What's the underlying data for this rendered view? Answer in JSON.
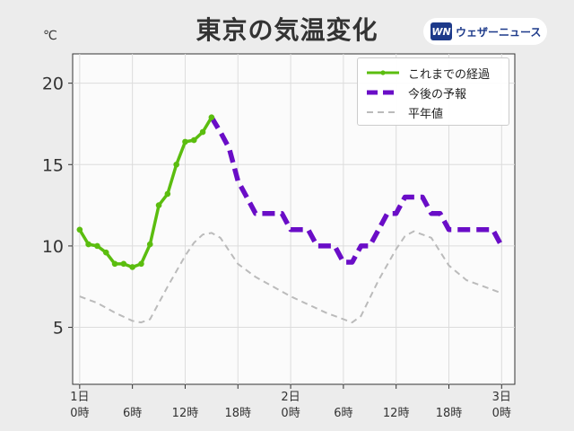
{
  "page": {
    "title": "東京の気温変化",
    "brand": "ウェザーニュース",
    "brand_mark": "WN"
  },
  "chart_data": {
    "type": "line",
    "unit": "℃",
    "ylim": [
      1.5,
      21.8
    ],
    "xlim": [
      -0.8,
      49.5
    ],
    "yticks": [
      5,
      10,
      15,
      20
    ],
    "xticks": [
      {
        "x": 0,
        "line1": "1日",
        "line2": "0時"
      },
      {
        "x": 6,
        "line1": "",
        "line2": "6時"
      },
      {
        "x": 12,
        "line1": "",
        "line2": "12時"
      },
      {
        "x": 18,
        "line1": "",
        "line2": "18時"
      },
      {
        "x": 24,
        "line1": "2日",
        "line2": "0時"
      },
      {
        "x": 30,
        "line1": "",
        "line2": "6時"
      },
      {
        "x": 36,
        "line1": "",
        "line2": "12時"
      },
      {
        "x": 42,
        "line1": "",
        "line2": "18時"
      },
      {
        "x": 48,
        "line1": "3日",
        "line2": "0時"
      }
    ],
    "grid": true,
    "legend_position": "top-right",
    "series": [
      {
        "name": "これまでの経過",
        "color": "#5bbd0f",
        "style": "solid-markers",
        "x": [
          0,
          1,
          2,
          3,
          4,
          5,
          6,
          7,
          8,
          9,
          10,
          11,
          12,
          13,
          14,
          15
        ],
        "y": [
          11.0,
          10.1,
          10.0,
          9.6,
          8.9,
          8.9,
          8.7,
          8.9,
          10.1,
          12.5,
          13.2,
          15.0,
          16.4,
          16.5,
          17.0,
          17.9
        ]
      },
      {
        "name": "今後の予報",
        "color": "#6a0dc7",
        "style": "dashed-step",
        "x": [
          15,
          16,
          17,
          18,
          19,
          20,
          21,
          22,
          23,
          24,
          25,
          26,
          27,
          28,
          29,
          30,
          31,
          32,
          33,
          34,
          35,
          36,
          37,
          38,
          39,
          40,
          41,
          42,
          43,
          44,
          45,
          46,
          47,
          48
        ],
        "y": [
          17.9,
          17.0,
          16.0,
          14.0,
          13.0,
          12.0,
          12.0,
          12.0,
          12.0,
          11.0,
          11.0,
          11.0,
          10.0,
          10.0,
          10.0,
          9.0,
          9.0,
          10.0,
          10.0,
          11.0,
          12.0,
          12.0,
          13.0,
          13.0,
          13.0,
          12.0,
          12.0,
          11.0,
          11.0,
          11.0,
          11.0,
          11.0,
          11.0,
          10.0
        ]
      },
      {
        "name": "平年値",
        "color": "#bbbbbb",
        "style": "dashed-thin",
        "x": [
          0,
          2,
          4,
          6,
          7,
          8,
          10,
          12,
          13,
          14,
          15,
          16,
          18,
          20,
          24,
          28,
          30,
          31,
          32,
          34,
          36,
          37,
          38,
          40,
          42,
          44,
          46,
          48
        ],
        "y": [
          6.9,
          6.5,
          5.9,
          5.4,
          5.3,
          5.5,
          7.5,
          9.4,
          10.2,
          10.7,
          10.8,
          10.5,
          8.9,
          8.1,
          6.9,
          5.9,
          5.5,
          5.3,
          5.7,
          7.9,
          9.8,
          10.6,
          10.9,
          10.5,
          8.8,
          7.9,
          7.5,
          7.1
        ]
      }
    ]
  }
}
